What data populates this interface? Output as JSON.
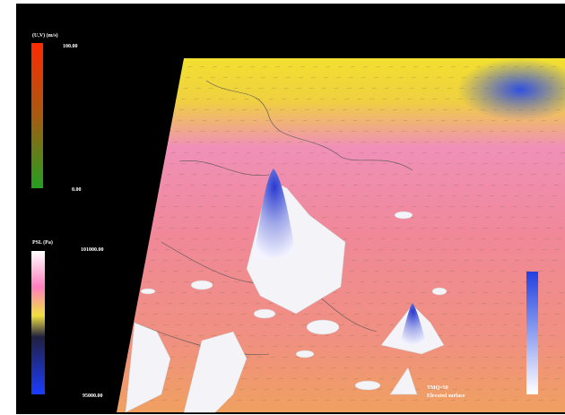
{
  "legends": [
    {
      "title": "(U,V) (m/s)",
      "max_label": "100.00",
      "min_label": "0.00"
    },
    {
      "title": "PSL (Pa)",
      "max_label": "101000.00",
      "min_label": "95000.00"
    }
  ],
  "annotation": {
    "line1": "TMQ=50",
    "line2": "Elevated surface"
  }
}
